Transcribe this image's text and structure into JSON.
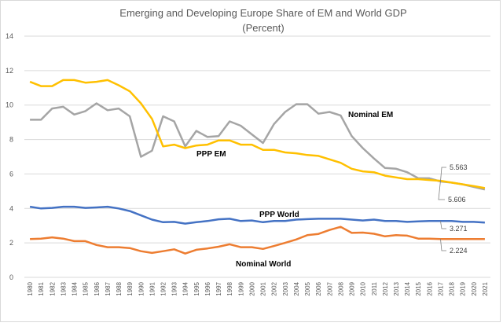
{
  "chart_data": {
    "type": "line",
    "title": "Emerging and Developing Europe Share of EM and World GDP",
    "subtitle": "(Percent)",
    "xlabel": "",
    "ylabel": "",
    "ylim": [
      0,
      14
    ],
    "yticks": [
      0,
      2,
      4,
      6,
      8,
      10,
      12,
      14
    ],
    "grid": true,
    "legend": "none (inline series labels)",
    "x": [
      1980,
      1981,
      1982,
      1983,
      1984,
      1985,
      1986,
      1987,
      1988,
      1989,
      1990,
      1991,
      1992,
      1993,
      1994,
      1995,
      1996,
      1997,
      1998,
      1999,
      2000,
      2001,
      2002,
      2003,
      2004,
      2005,
      2006,
      2007,
      2008,
      2009,
      2010,
      2011,
      2012,
      2013,
      2014,
      2015,
      2016,
      2017,
      2018,
      2019,
      2020,
      2021
    ],
    "series": [
      {
        "name": "Nominal EM",
        "color": "#a5a5a5",
        "values": [
          9.15,
          9.15,
          9.8,
          9.9,
          9.45,
          9.65,
          10.1,
          9.7,
          9.8,
          9.35,
          7.0,
          7.35,
          9.35,
          9.05,
          7.6,
          8.5,
          8.15,
          8.2,
          9.05,
          8.8,
          8.3,
          7.8,
          8.9,
          9.6,
          10.05,
          10.05,
          9.5,
          9.6,
          9.4,
          8.2,
          7.5,
          6.9,
          6.35,
          6.3,
          6.1,
          5.75,
          5.75,
          5.563,
          5.5,
          5.4,
          5.25,
          5.1
        ]
      },
      {
        "name": "PPP EM",
        "color": "#ffc000",
        "values": [
          11.35,
          11.1,
          11.1,
          11.45,
          11.45,
          11.3,
          11.35,
          11.45,
          11.15,
          10.8,
          10.1,
          9.2,
          7.6,
          7.7,
          7.5,
          7.65,
          7.7,
          7.95,
          7.95,
          7.7,
          7.7,
          7.4,
          7.4,
          7.25,
          7.2,
          7.1,
          7.05,
          6.85,
          6.65,
          6.3,
          6.15,
          6.1,
          5.9,
          5.8,
          5.7,
          5.7,
          5.65,
          5.606,
          5.5,
          5.4,
          5.3,
          5.18
        ]
      },
      {
        "name": "PPP  World",
        "color": "#4472c4",
        "values": [
          4.1,
          4.0,
          4.03,
          4.1,
          4.1,
          4.03,
          4.06,
          4.1,
          4.0,
          3.85,
          3.6,
          3.35,
          3.2,
          3.22,
          3.12,
          3.2,
          3.27,
          3.37,
          3.4,
          3.27,
          3.3,
          3.2,
          3.27,
          3.27,
          3.35,
          3.38,
          3.4,
          3.4,
          3.4,
          3.35,
          3.3,
          3.35,
          3.27,
          3.27,
          3.22,
          3.25,
          3.27,
          3.271,
          3.27,
          3.22,
          3.22,
          3.18
        ]
      },
      {
        "name": "Nominal World",
        "color": "#ed7d31",
        "values": [
          2.22,
          2.25,
          2.32,
          2.25,
          2.1,
          2.1,
          1.88,
          1.75,
          1.75,
          1.7,
          1.52,
          1.42,
          1.52,
          1.63,
          1.38,
          1.6,
          1.68,
          1.78,
          1.92,
          1.75,
          1.75,
          1.65,
          1.82,
          2.0,
          2.2,
          2.45,
          2.52,
          2.75,
          2.93,
          2.58,
          2.6,
          2.53,
          2.38,
          2.45,
          2.42,
          2.25,
          2.25,
          2.224,
          2.22,
          2.22,
          2.22,
          2.22
        ]
      }
    ],
    "annotations": [
      {
        "text": "5.563",
        "series": "Nominal EM",
        "x": 2017
      },
      {
        "text": "5.606",
        "series": "PPP EM",
        "x": 2017
      },
      {
        "text": "3.271",
        "series": "PPP  World",
        "x": 2017
      },
      {
        "text": "2.224",
        "series": "Nominal World",
        "x": 2017
      }
    ]
  }
}
